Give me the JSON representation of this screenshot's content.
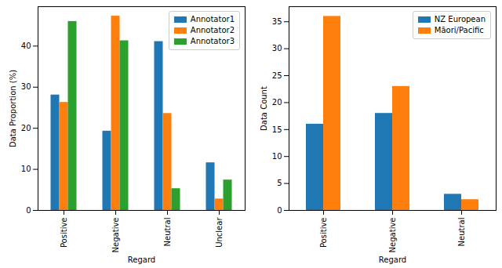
{
  "chart_data": [
    {
      "type": "bar",
      "x_label": "Regard",
      "y_label": "Data Proportion (%)",
      "categories": [
        "Positive",
        "Negative",
        "Neutral",
        "Unclear"
      ],
      "series": [
        {
          "name": "Annotator1",
          "color": "#1f77b4",
          "values": [
            28.1,
            19.3,
            41.1,
            11.6
          ]
        },
        {
          "name": "Annotator2",
          "color": "#ff7f0e",
          "values": [
            26.3,
            47.3,
            23.6,
            2.8
          ]
        },
        {
          "name": "Annotator3",
          "color": "#2ca02c",
          "values": [
            46.0,
            41.3,
            5.3,
            7.4
          ]
        }
      ],
      "ylim": [
        0,
        49.6
      ],
      "yticks": [
        0,
        10,
        20,
        30,
        40
      ],
      "legend": "upper right"
    },
    {
      "type": "bar",
      "x_label": "Regard",
      "y_label": "Data Count",
      "categories": [
        "Positive",
        "Negative",
        "Neutral"
      ],
      "series": [
        {
          "name": "NZ European",
          "color": "#1f77b4",
          "values": [
            16,
            18,
            3
          ]
        },
        {
          "name": "Māori/Pacific",
          "color": "#ff7f0e",
          "values": [
            36,
            23,
            2
          ]
        }
      ],
      "ylim": [
        0,
        37.8
      ],
      "yticks": [
        0,
        5,
        10,
        15,
        20,
        25,
        30,
        35
      ],
      "legend": "upper right"
    }
  ]
}
